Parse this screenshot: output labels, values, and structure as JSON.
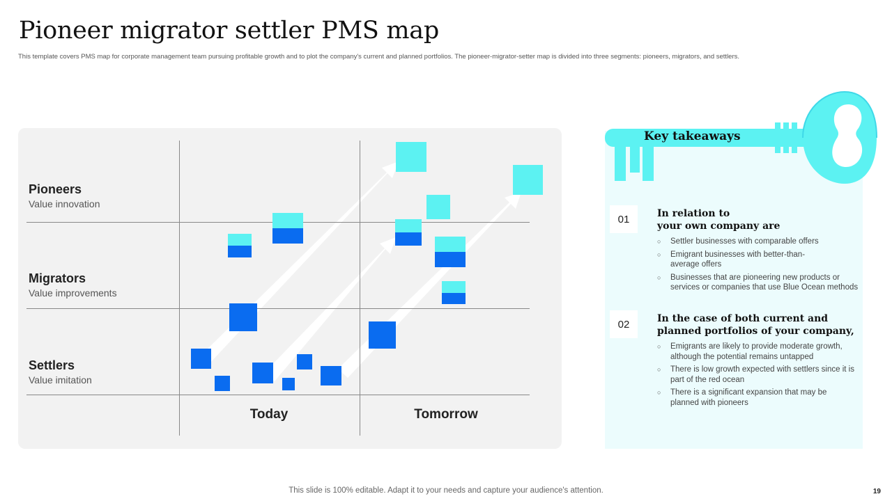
{
  "title": "Pioneer migrator settler PMS map",
  "subtitle": "This template covers PMS map for corporate management team pursuing profitable growth and to plot the company's current and planned portfolios. The pioneer-migrator-setter map is divided into three segments: pioneers, migrators, and settlers.",
  "map": {
    "rows": [
      {
        "heading": "Pioneers",
        "sub": "Value innovation"
      },
      {
        "heading": "Migrators",
        "sub": "Value improvements"
      },
      {
        "heading": "Settlers",
        "sub": "Value imitation"
      }
    ],
    "columns": [
      "Today",
      "Tomorrow"
    ]
  },
  "colors": {
    "blue": "#0a6cf0",
    "cyan": "#5cf2f2",
    "panel": "#f2f2f2",
    "key": "#5cf2f2"
  },
  "key_takeaways": {
    "title": "Key takeaways",
    "icon": "key-icon",
    "sections": [
      {
        "number": "01",
        "heading_line1": "In relation to",
        "heading_line2": "your own company are",
        "bullets": [
          "Settler businesses with comparable offers",
          "Emigrant businesses with better-than-average offers",
          "Businesses that are pioneering new products or services or companies that use Blue Ocean methods"
        ]
      },
      {
        "number": "02",
        "heading_line1": "In the case of both current and",
        "heading_line2": "planned portfolios of your company,",
        "bullets": [
          "Emigrants are likely to provide moderate growth, although the potential remains untapped",
          "There is low growth expected with settlers since it is part of the red ocean",
          "There is a significant expansion that may be planned with pioneers"
        ]
      }
    ]
  },
  "footer": "This slide is 100% editable. Adapt it to your needs and capture your audience's attention.",
  "page_number": "19"
}
